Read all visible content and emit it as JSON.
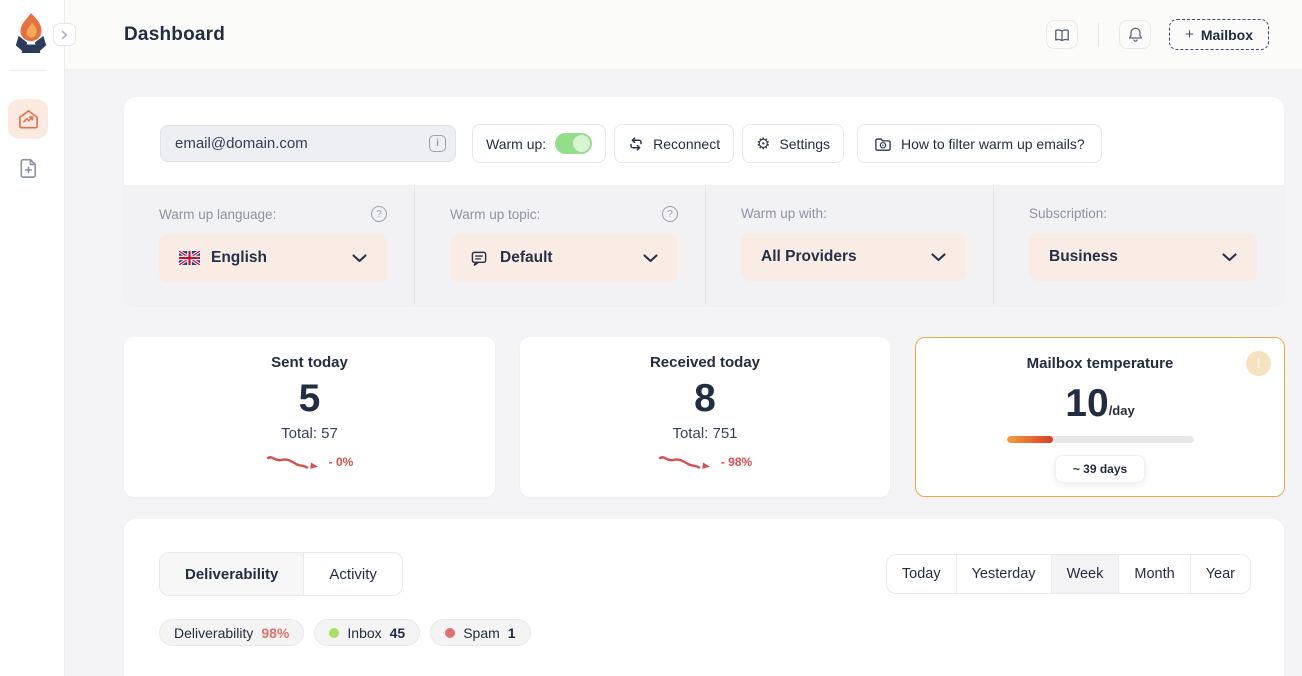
{
  "header": {
    "title": "Dashboard",
    "mailbox_button": {
      "plus": "+",
      "label": "Mailbox"
    }
  },
  "controls": {
    "email": "email@domain.com",
    "warmup_label": "Warm up:",
    "warmup_on": true,
    "reconnect_label": "Reconnect",
    "settings_label": "Settings",
    "howto_label": "How to filter warm up emails?"
  },
  "options": [
    {
      "label": "Warm up language:",
      "value": "English",
      "has_help": true,
      "icon": "uk-flag"
    },
    {
      "label": "Warm up topic:",
      "value": "Default",
      "has_help": true,
      "icon": "chat"
    },
    {
      "label": "Warm up with:",
      "value": "All Providers",
      "has_help": false,
      "icon": null
    },
    {
      "label": "Subscription:",
      "value": "Business",
      "has_help": false,
      "icon": null
    }
  ],
  "stats": {
    "sent": {
      "title": "Sent today",
      "value": "5",
      "total": "Total: 57",
      "trend": "- 0%"
    },
    "received": {
      "title": "Received today",
      "value": "8",
      "total": "Total: 751",
      "trend": "- 98%"
    },
    "temperature": {
      "title": "Mailbox temperature",
      "value": "10",
      "unit": "/day",
      "eta": "~ 39 days",
      "progress_pct": 25,
      "info_mark": "!"
    }
  },
  "panel": {
    "tabs": [
      {
        "label": "Deliverability",
        "active": true
      },
      {
        "label": "Activity",
        "active": false
      }
    ],
    "ranges": [
      "Today",
      "Yesterday",
      "Week",
      "Month",
      "Year"
    ],
    "active_range": "Week",
    "badges": [
      {
        "label": "Deliverability",
        "value": "98%"
      },
      {
        "label": "Inbox",
        "value": "45"
      },
      {
        "label": "Spam",
        "value": "1"
      }
    ]
  },
  "colors": {
    "accent_orange": "#e2714b",
    "toggle_green": "#92de8b",
    "trend_red": "#d84f4c",
    "temperature_border": "#e8ab4c",
    "deliverability_pct": "#e2726a",
    "inbox_dot": "#a8e063",
    "spam_dot": "#e07070"
  }
}
